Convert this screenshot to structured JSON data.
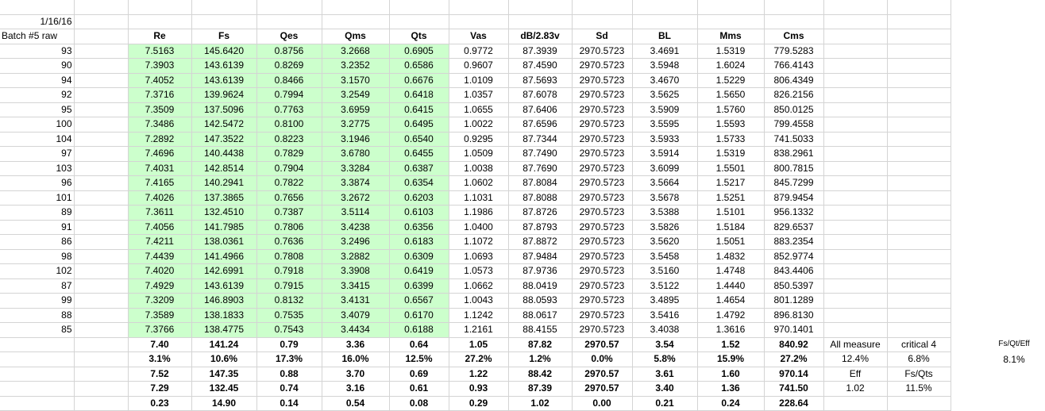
{
  "sheet": {
    "date": "1/16/16",
    "batch_label": "Batch #5 raw",
    "headers": [
      "Re",
      "Fs",
      "Qes",
      "Qms",
      "Qts",
      "Vas",
      "dB/2.83v",
      "Sd",
      "BL",
      "Mms",
      "Cms"
    ],
    "rows": [
      [
        "93",
        "7.5163",
        "145.6420",
        "0.8756",
        "3.2668",
        "0.6905",
        "0.9772",
        "87.3939",
        "2970.5723",
        "3.4691",
        "1.5319",
        "779.5283"
      ],
      [
        "90",
        "7.3903",
        "143.6139",
        "0.8269",
        "3.2352",
        "0.6586",
        "0.9607",
        "87.4590",
        "2970.5723",
        "3.5948",
        "1.6024",
        "766.4143"
      ],
      [
        "94",
        "7.4052",
        "143.6139",
        "0.8466",
        "3.1570",
        "0.6676",
        "1.0109",
        "87.5693",
        "2970.5723",
        "3.4670",
        "1.5229",
        "806.4349"
      ],
      [
        "92",
        "7.3716",
        "139.9624",
        "0.7994",
        "3.2549",
        "0.6418",
        "1.0357",
        "87.6078",
        "2970.5723",
        "3.5625",
        "1.5650",
        "826.2156"
      ],
      [
        "95",
        "7.3509",
        "137.5096",
        "0.7763",
        "3.6959",
        "0.6415",
        "1.0655",
        "87.6406",
        "2970.5723",
        "3.5909",
        "1.5760",
        "850.0125"
      ],
      [
        "100",
        "7.3486",
        "142.5472",
        "0.8100",
        "3.2775",
        "0.6495",
        "1.0022",
        "87.6596",
        "2970.5723",
        "3.5595",
        "1.5593",
        "799.4558"
      ],
      [
        "104",
        "7.2892",
        "147.3522",
        "0.8223",
        "3.1946",
        "0.6540",
        "0.9295",
        "87.7344",
        "2970.5723",
        "3.5933",
        "1.5733",
        "741.5033"
      ],
      [
        "97",
        "7.4696",
        "140.4438",
        "0.7829",
        "3.6780",
        "0.6455",
        "1.0509",
        "87.7490",
        "2970.5723",
        "3.5914",
        "1.5319",
        "838.2961"
      ],
      [
        "103",
        "7.4031",
        "142.8514",
        "0.7904",
        "3.3284",
        "0.6387",
        "1.0038",
        "87.7690",
        "2970.5723",
        "3.6099",
        "1.5501",
        "800.7815"
      ],
      [
        "96",
        "7.4165",
        "140.2941",
        "0.7822",
        "3.3874",
        "0.6354",
        "1.0602",
        "87.8084",
        "2970.5723",
        "3.5664",
        "1.5217",
        "845.7299"
      ],
      [
        "101",
        "7.4026",
        "137.3865",
        "0.7656",
        "3.2672",
        "0.6203",
        "1.1031",
        "87.8088",
        "2970.5723",
        "3.5678",
        "1.5251",
        "879.9454"
      ],
      [
        "89",
        "7.3611",
        "132.4510",
        "0.7387",
        "3.5114",
        "0.6103",
        "1.1986",
        "87.8726",
        "2970.5723",
        "3.5388",
        "1.5101",
        "956.1332"
      ],
      [
        "91",
        "7.4056",
        "141.7985",
        "0.7806",
        "3.4238",
        "0.6356",
        "1.0400",
        "87.8793",
        "2970.5723",
        "3.5826",
        "1.5184",
        "829.6537"
      ],
      [
        "86",
        "7.4211",
        "138.0361",
        "0.7636",
        "3.2496",
        "0.6183",
        "1.1072",
        "87.8872",
        "2970.5723",
        "3.5620",
        "1.5051",
        "883.2354"
      ],
      [
        "98",
        "7.4439",
        "141.4966",
        "0.7808",
        "3.2882",
        "0.6309",
        "1.0693",
        "87.9484",
        "2970.5723",
        "3.5458",
        "1.4832",
        "852.9774"
      ],
      [
        "102",
        "7.4020",
        "142.6991",
        "0.7918",
        "3.3908",
        "0.6419",
        "1.0573",
        "87.9736",
        "2970.5723",
        "3.5160",
        "1.4748",
        "843.4406"
      ],
      [
        "87",
        "7.4929",
        "143.6139",
        "0.7915",
        "3.3415",
        "0.6399",
        "1.0662",
        "88.0419",
        "2970.5723",
        "3.5122",
        "1.4440",
        "850.5397"
      ],
      [
        "99",
        "7.3209",
        "146.8903",
        "0.8132",
        "3.4131",
        "0.6567",
        "1.0043",
        "88.0593",
        "2970.5723",
        "3.4895",
        "1.4654",
        "801.1289"
      ],
      [
        "88",
        "7.3589",
        "138.1833",
        "0.7535",
        "3.4079",
        "0.6170",
        "1.1242",
        "88.0617",
        "2970.5723",
        "3.5416",
        "1.4792",
        "896.8130"
      ],
      [
        "85",
        "7.3766",
        "138.4775",
        "0.7543",
        "3.4434",
        "0.6188",
        "1.2161",
        "88.4155",
        "2970.5723",
        "3.4038",
        "1.3616",
        "970.1401"
      ]
    ],
    "stats": [
      [
        "7.40",
        "141.24",
        "0.79",
        "3.36",
        "0.64",
        "1.05",
        "87.82",
        "2970.57",
        "3.54",
        "1.52",
        "840.92"
      ],
      [
        "3.1%",
        "10.6%",
        "17.3%",
        "16.0%",
        "12.5%",
        "27.2%",
        "1.2%",
        "0.0%",
        "5.8%",
        "15.9%",
        "27.2%"
      ],
      [
        "7.52",
        "147.35",
        "0.88",
        "3.70",
        "0.69",
        "1.22",
        "88.42",
        "2970.57",
        "3.61",
        "1.60",
        "970.14"
      ],
      [
        "7.29",
        "132.45",
        "0.74",
        "3.16",
        "0.61",
        "0.93",
        "87.39",
        "2970.57",
        "3.40",
        "1.36",
        "741.50"
      ],
      [
        "0.23",
        "14.90",
        "0.14",
        "0.54",
        "0.08",
        "0.29",
        "1.02",
        "0.00",
        "0.21",
        "0.24",
        "228.64"
      ]
    ],
    "side": {
      "all_measure_label": "All measure",
      "critical4_label": "critical 4",
      "fs_qt_eff_label": "Fs/Qt/Eff",
      "all_measure_value": "12.4%",
      "critical4_value": "6.8%",
      "fs_qt_eff_value": "8.1%",
      "eff_label": "Eff",
      "fs_qts_label": "Fs/Qts",
      "eff_value": "1.02",
      "fs_qts_value": "11.5%"
    }
  }
}
